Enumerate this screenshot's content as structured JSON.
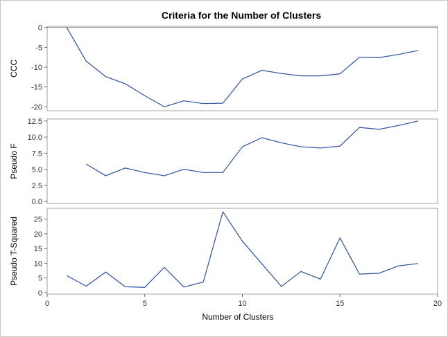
{
  "chart_data": {
    "type": "line",
    "title": "Criteria for the Number of Clusters",
    "xlabel": "Number of Clusters",
    "xlim": [
      0,
      20
    ],
    "xticks": [
      0,
      5,
      10,
      15,
      20
    ],
    "line_color": "#2a4f9e",
    "frame_color": "#a0a0a0",
    "panels": [
      {
        "ylabel": "CCC",
        "ylim": [
          -21,
          0.3
        ],
        "yticks": [
          0,
          -5,
          -10,
          -15,
          -20
        ],
        "reference_line": 0,
        "x": [
          1,
          2,
          3,
          4,
          5,
          6,
          7,
          8,
          9,
          10,
          11,
          12,
          13,
          14,
          15,
          16,
          17,
          18,
          19
        ],
        "values": [
          0,
          -8.5,
          -12.4,
          -14.2,
          -17.2,
          -20.0,
          -18.5,
          -19.2,
          -19.1,
          -13.0,
          -10.8,
          -11.6,
          -12.2,
          -12.2,
          -11.7,
          -7.5,
          -7.6,
          -6.8,
          -5.8
        ]
      },
      {
        "ylabel": "Pseudo F",
        "ylim": [
          -0.3,
          12.8
        ],
        "yticks": [
          0.0,
          2.5,
          5.0,
          7.5,
          10.0,
          12.5
        ],
        "x": [
          2,
          3,
          4,
          5,
          6,
          7,
          8,
          9,
          10,
          11,
          12,
          13,
          14,
          15,
          16,
          17,
          18,
          19
        ],
        "values": [
          5.8,
          4.0,
          5.2,
          4.5,
          4.0,
          5.0,
          4.5,
          4.5,
          8.5,
          9.9,
          9.1,
          8.5,
          8.3,
          8.6,
          11.5,
          11.2,
          11.8,
          12.5
        ]
      },
      {
        "ylabel": "Pseudo T-Squared",
        "ylim": [
          -0.5,
          28.7
        ],
        "yticks": [
          0,
          5,
          10,
          15,
          20,
          25
        ],
        "x": [
          1,
          2,
          3,
          4,
          5,
          6,
          7,
          8,
          9,
          10,
          11,
          12,
          13,
          14,
          15,
          16,
          17,
          18,
          19
        ],
        "values": [
          5.8,
          2.2,
          7.0,
          2.0,
          1.8,
          8.6,
          1.9,
          3.6,
          27.5,
          17.5,
          9.8,
          2.1,
          7.2,
          4.6,
          18.6,
          6.3,
          6.6,
          9.1,
          9.9
        ]
      }
    ]
  }
}
